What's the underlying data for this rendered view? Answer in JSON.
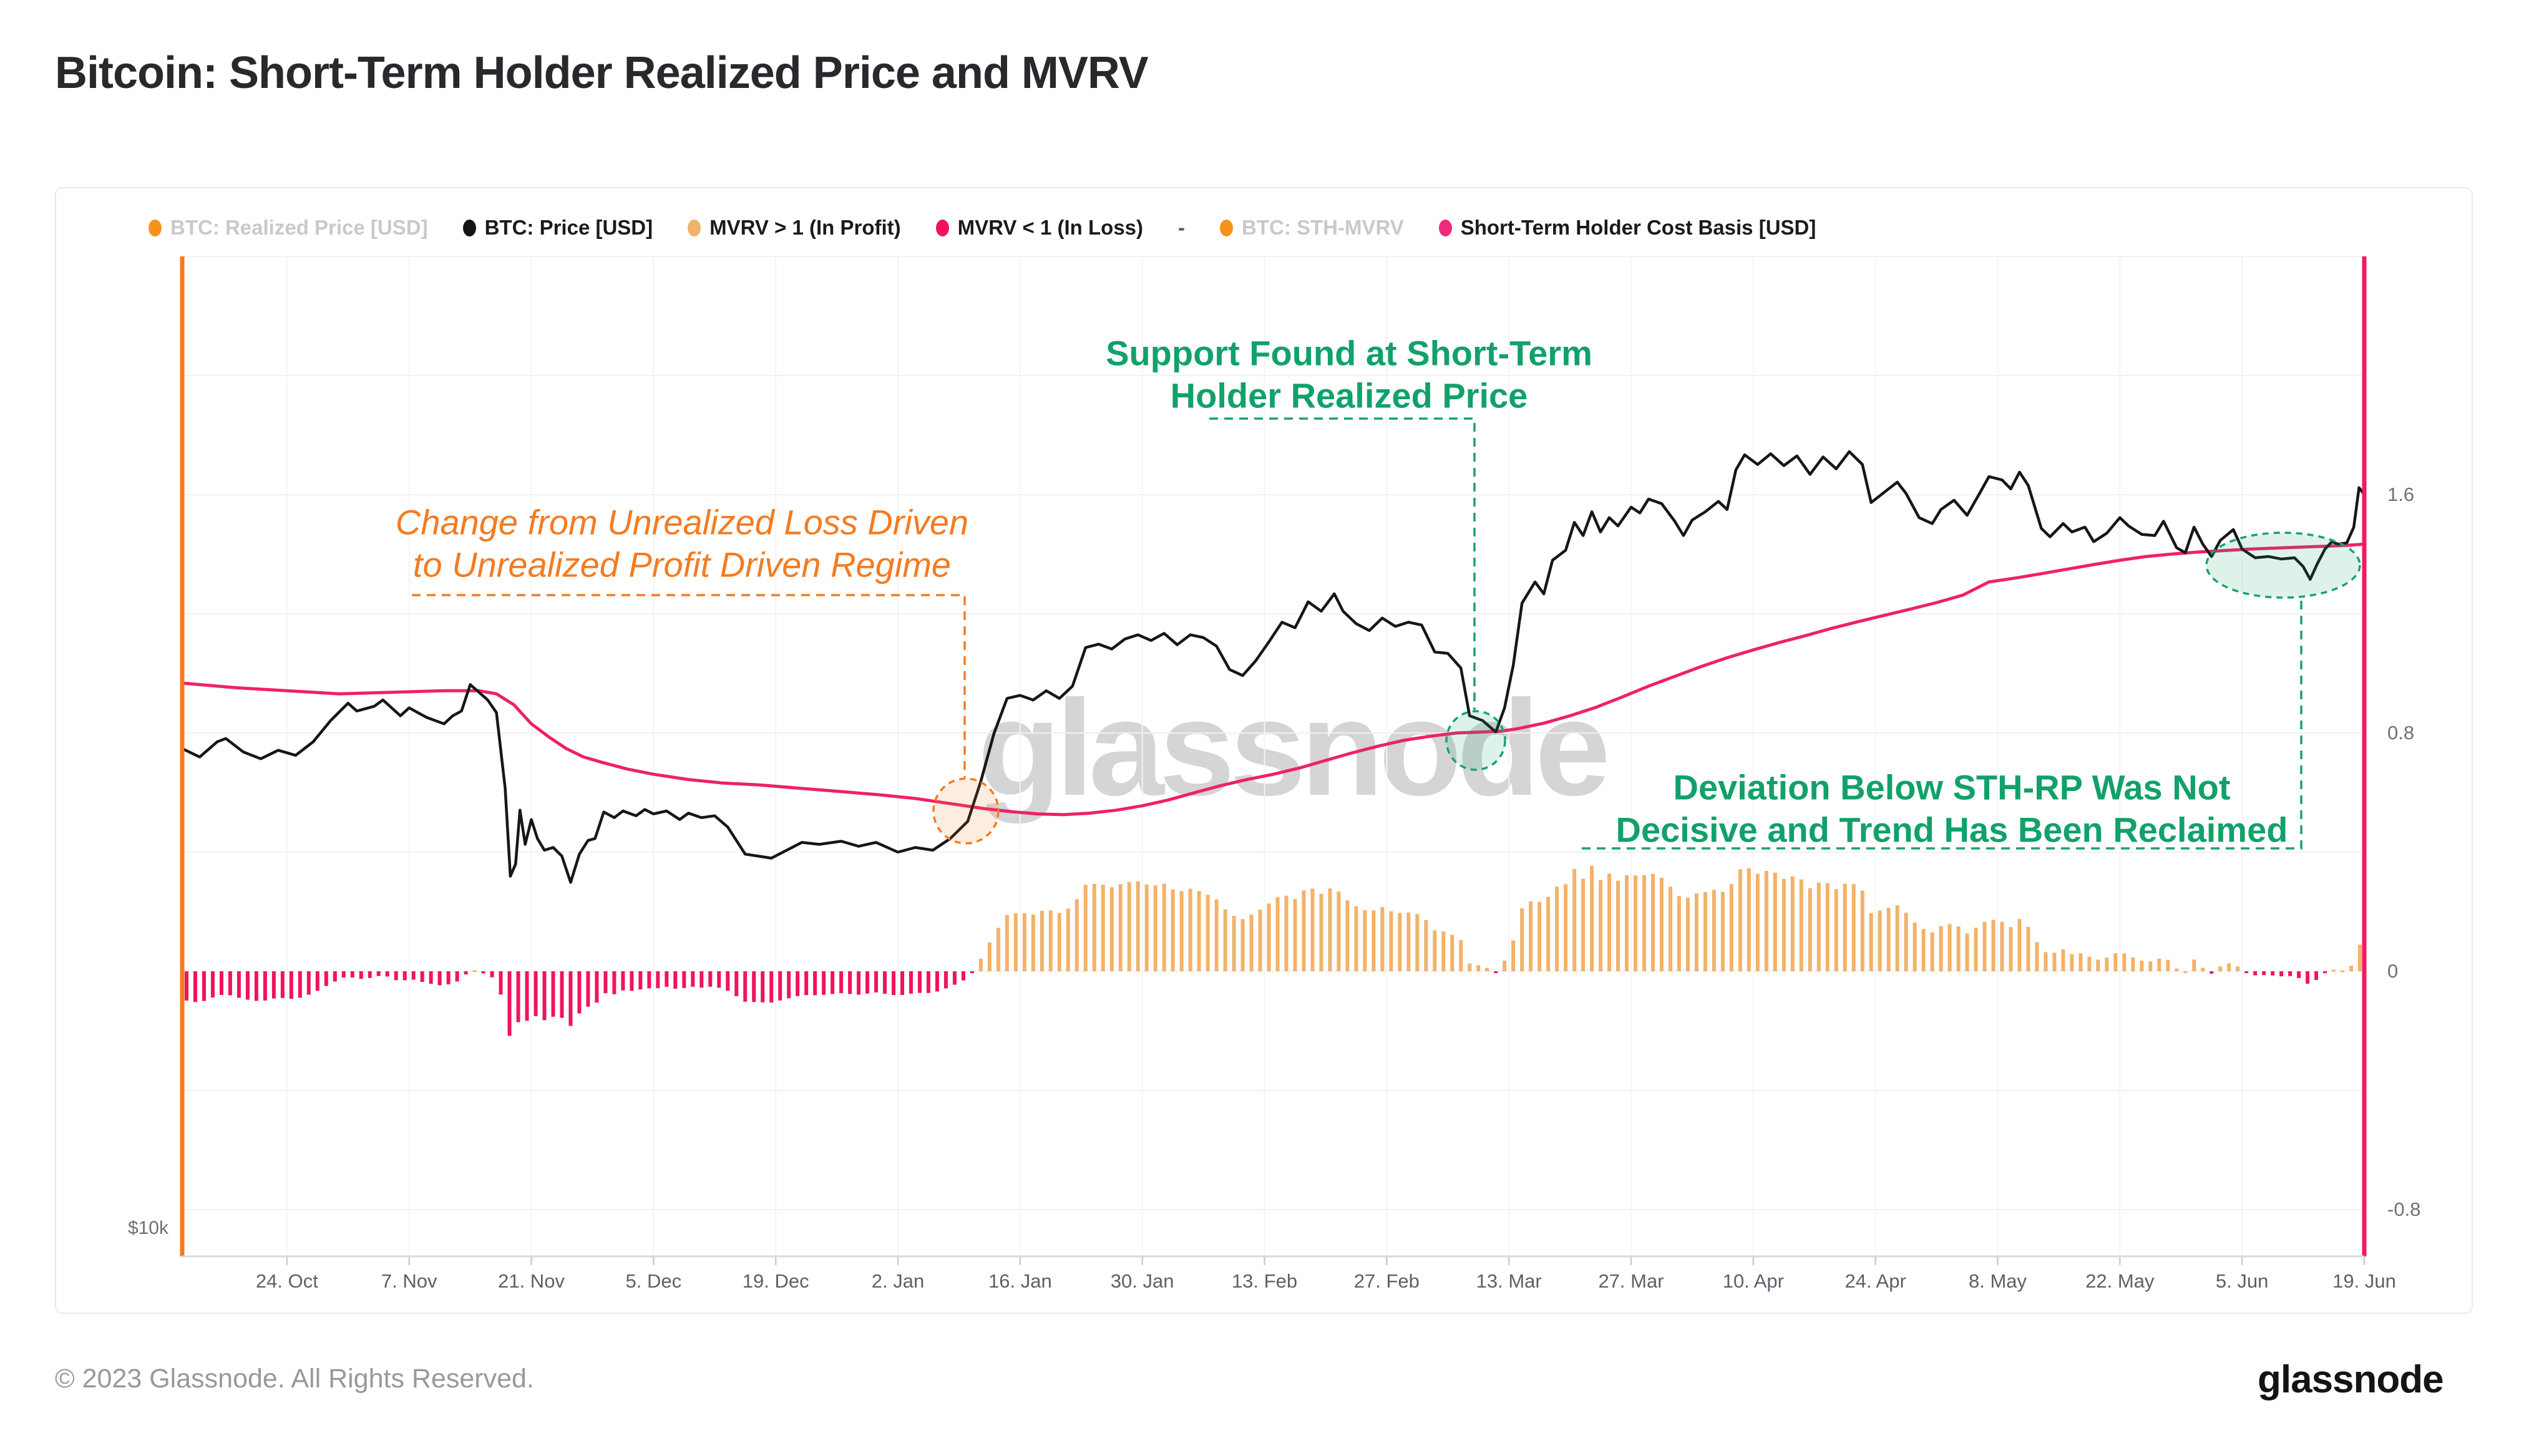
{
  "page": {
    "title": "Bitcoin: Short-Term Holder Realized Price and MVRV"
  },
  "legend": {
    "items": [
      {
        "label": "BTC: Realized Price [USD]",
        "color": "#F7931A",
        "muted": true,
        "separator": false
      },
      {
        "label": "BTC: Price [USD]",
        "color": "#141414",
        "muted": false,
        "separator": false
      },
      {
        "label": "MVRV > 1 (In Profit)",
        "color": "#F2B269",
        "muted": false,
        "separator": false
      },
      {
        "label": "MVRV < 1 (In Loss)",
        "color": "#F0135E",
        "muted": false,
        "separator": false
      },
      {
        "label": "-",
        "color": "",
        "muted": false,
        "separator": true
      },
      {
        "label": "BTC: STH-MVRV",
        "color": "#F7931A",
        "muted": true,
        "separator": false
      },
      {
        "label": "Short-Term Holder Cost Basis [USD]",
        "color": "#EE2A7B",
        "muted": false,
        "separator": false
      }
    ]
  },
  "annotations": {
    "regime_change": {
      "line1": "Change from Unrealized Loss Driven",
      "line2": "to Unrealized Profit Driven Regime",
      "color": "#f47b20"
    },
    "support_found": {
      "line1": "Support Found at Short-Term",
      "line2": "Holder Realized Price",
      "color": "#11a169"
    },
    "deviation": {
      "line1": "Deviation Below STH-RP Was Not",
      "line2": "Decisive and Trend Has Been Reclaimed",
      "color": "#11a169"
    }
  },
  "watermark": {
    "text": "glassnode"
  },
  "footer": {
    "copyright": "© 2023 Glassnode. All Rights Reserved.",
    "brand": "glassnode"
  },
  "chart_data": {
    "type": "line+bar",
    "title": "Bitcoin: Short-Term Holder Realized Price and MVRV",
    "x_axis": {
      "start_date": "2022-10-12",
      "end_date": "2023-06-19",
      "tick_labels": [
        "24. Oct",
        "7. Nov",
        "21. Nov",
        "5. Dec",
        "19. Dec",
        "2. Jan",
        "16. Jan",
        "30. Jan",
        "13. Feb",
        "27. Feb",
        "13. Mar",
        "27. Mar",
        "10. Apr",
        "24. Apr",
        "8. May",
        "22. May",
        "5. Jun",
        "19. Jun"
      ],
      "tick_days": [
        12,
        26,
        40,
        54,
        68,
        82,
        96,
        110,
        124,
        138,
        152,
        166,
        180,
        194,
        208,
        222,
        236,
        250
      ]
    },
    "y_axis_left": {
      "scale": "log",
      "unit": "USD",
      "visible_label": "$10k"
    },
    "y_axis_right": {
      "range": [
        -0.8,
        2.4
      ],
      "ticks": [
        {
          "v": 1.6,
          "label": "1.6"
        },
        {
          "v": 0.8,
          "label": "0.8"
        },
        {
          "v": 0,
          "label": "0"
        },
        {
          "v": -0.8,
          "label": "-0.8"
        }
      ]
    },
    "grid": true,
    "legend_position": "top",
    "series": {
      "btc_price_usd_k": {
        "name": "BTC: Price [USD]",
        "unit": "thousand USD",
        "color": "#141414",
        "points": [
          [
            0,
            19.35
          ],
          [
            2,
            19.1
          ],
          [
            4,
            19.55
          ],
          [
            5,
            19.65
          ],
          [
            7,
            19.25
          ],
          [
            9,
            19.05
          ],
          [
            11,
            19.3
          ],
          [
            13,
            19.15
          ],
          [
            15,
            19.55
          ],
          [
            17,
            20.2
          ],
          [
            19,
            20.75
          ],
          [
            20,
            20.5
          ],
          [
            22,
            20.65
          ],
          [
            23,
            20.85
          ],
          [
            25,
            20.35
          ],
          [
            26,
            20.6
          ],
          [
            28,
            20.3
          ],
          [
            30,
            20.1
          ],
          [
            31,
            20.35
          ],
          [
            32,
            20.5
          ],
          [
            33,
            21.35
          ],
          [
            34,
            21.1
          ],
          [
            35,
            20.85
          ],
          [
            36,
            20.45
          ],
          [
            37,
            18.2
          ],
          [
            37.6,
            15.9
          ],
          [
            38.2,
            16.2
          ],
          [
            38.7,
            17.6
          ],
          [
            39.3,
            16.7
          ],
          [
            40,
            17.35
          ],
          [
            40.7,
            16.85
          ],
          [
            41.5,
            16.55
          ],
          [
            42.5,
            16.62
          ],
          [
            43.5,
            16.4
          ],
          [
            44.5,
            15.75
          ],
          [
            45.5,
            16.45
          ],
          [
            46.5,
            16.8
          ],
          [
            47.3,
            16.85
          ],
          [
            48.3,
            17.55
          ],
          [
            49.5,
            17.4
          ],
          [
            50.5,
            17.58
          ],
          [
            52,
            17.45
          ],
          [
            53,
            17.62
          ],
          [
            54,
            17.5
          ],
          [
            55.5,
            17.58
          ],
          [
            57,
            17.35
          ],
          [
            58,
            17.52
          ],
          [
            59.5,
            17.4
          ],
          [
            61,
            17.45
          ],
          [
            62.5,
            17.15
          ],
          [
            63.5,
            16.8
          ],
          [
            64.5,
            16.45
          ],
          [
            66,
            16.4
          ],
          [
            67.5,
            16.35
          ],
          [
            69,
            16.52
          ],
          [
            71,
            16.75
          ],
          [
            73,
            16.7
          ],
          [
            75.5,
            16.78
          ],
          [
            77.5,
            16.65
          ],
          [
            79.5,
            16.75
          ],
          [
            82,
            16.5
          ],
          [
            84,
            16.62
          ],
          [
            86,
            16.55
          ],
          [
            88,
            16.85
          ],
          [
            90,
            17.3
          ],
          [
            91.5,
            18.4
          ],
          [
            93,
            19.8
          ],
          [
            94.5,
            20.9
          ],
          [
            96,
            21.0
          ],
          [
            97.5,
            20.85
          ],
          [
            99,
            21.15
          ],
          [
            100.5,
            20.9
          ],
          [
            102,
            21.3
          ],
          [
            103.5,
            22.6
          ],
          [
            105,
            22.72
          ],
          [
            106.5,
            22.55
          ],
          [
            108,
            22.9
          ],
          [
            109.5,
            23.05
          ],
          [
            111,
            22.85
          ],
          [
            112.5,
            23.1
          ],
          [
            114,
            22.7
          ],
          [
            115.5,
            23.05
          ],
          [
            117,
            22.95
          ],
          [
            118.5,
            22.65
          ],
          [
            120,
            21.85
          ],
          [
            121.5,
            21.65
          ],
          [
            123,
            22.15
          ],
          [
            124.5,
            22.8
          ],
          [
            126,
            23.5
          ],
          [
            127.5,
            23.3
          ],
          [
            129,
            24.25
          ],
          [
            130.5,
            23.9
          ],
          [
            132,
            24.55
          ],
          [
            133,
            23.9
          ],
          [
            134.5,
            23.45
          ],
          [
            136,
            23.2
          ],
          [
            137.5,
            23.65
          ],
          [
            139,
            23.35
          ],
          [
            140.5,
            23.5
          ],
          [
            142,
            23.4
          ],
          [
            143.5,
            22.45
          ],
          [
            145,
            22.4
          ],
          [
            146.5,
            21.9
          ],
          [
            147.5,
            20.35
          ],
          [
            149,
            20.2
          ],
          [
            150.5,
            19.85
          ],
          [
            151.5,
            20.6
          ],
          [
            152.5,
            22.0
          ],
          [
            153.5,
            24.2
          ],
          [
            155,
            25.0
          ],
          [
            156,
            24.55
          ],
          [
            157,
            25.85
          ],
          [
            158.5,
            26.25
          ],
          [
            159.5,
            27.4
          ],
          [
            160.5,
            26.85
          ],
          [
            161.5,
            27.85
          ],
          [
            162.5,
            27.0
          ],
          [
            163.5,
            27.6
          ],
          [
            164.5,
            27.25
          ],
          [
            166,
            28.05
          ],
          [
            167,
            27.8
          ],
          [
            168,
            28.4
          ],
          [
            169.5,
            28.2
          ],
          [
            171,
            27.45
          ],
          [
            172,
            26.85
          ],
          [
            173,
            27.5
          ],
          [
            174.5,
            27.85
          ],
          [
            176,
            28.3
          ],
          [
            177,
            27.95
          ],
          [
            178,
            29.7
          ],
          [
            179,
            30.4
          ],
          [
            180.5,
            29.95
          ],
          [
            182,
            30.45
          ],
          [
            183.5,
            29.9
          ],
          [
            185,
            30.35
          ],
          [
            186.5,
            29.5
          ],
          [
            188,
            30.3
          ],
          [
            189.5,
            29.75
          ],
          [
            191,
            30.55
          ],
          [
            192.5,
            29.95
          ],
          [
            193.5,
            28.25
          ],
          [
            195,
            28.7
          ],
          [
            196.5,
            29.15
          ],
          [
            197.5,
            28.65
          ],
          [
            199,
            27.6
          ],
          [
            200.5,
            27.35
          ],
          [
            201.5,
            27.95
          ],
          [
            203,
            28.35
          ],
          [
            204.5,
            27.7
          ],
          [
            206,
            28.7
          ],
          [
            207,
            29.4
          ],
          [
            208.5,
            29.25
          ],
          [
            209.5,
            28.85
          ],
          [
            210.5,
            29.6
          ],
          [
            211.5,
            29.0
          ],
          [
            213,
            27.15
          ],
          [
            214,
            26.8
          ],
          [
            215.5,
            27.35
          ],
          [
            216.5,
            27.0
          ],
          [
            218,
            27.2
          ],
          [
            219,
            26.6
          ],
          [
            220.5,
            26.95
          ],
          [
            222,
            27.6
          ],
          [
            223,
            27.25
          ],
          [
            224.5,
            26.9
          ],
          [
            226,
            26.85
          ],
          [
            227,
            27.45
          ],
          [
            228.5,
            26.35
          ],
          [
            229.5,
            26.15
          ],
          [
            230.5,
            27.2
          ],
          [
            231.5,
            26.5
          ],
          [
            232.5,
            26.0
          ],
          [
            233.5,
            26.65
          ],
          [
            235,
            27.1
          ],
          [
            236,
            26.3
          ],
          [
            237.5,
            25.95
          ],
          [
            239,
            26.0
          ],
          [
            240.5,
            25.9
          ],
          [
            242,
            25.95
          ],
          [
            243,
            25.6
          ],
          [
            243.8,
            25.1
          ],
          [
            244.6,
            25.7
          ],
          [
            245.5,
            26.3
          ],
          [
            246.3,
            26.6
          ],
          [
            247,
            26.5
          ],
          [
            248,
            26.55
          ],
          [
            248.8,
            27.2
          ],
          [
            249.4,
            28.9
          ],
          [
            250,
            28.6
          ]
        ]
      },
      "sth_cost_basis_usd_k": {
        "name": "Short-Term Holder Cost Basis [USD]",
        "unit": "thousand USD",
        "color": "#EF2069",
        "points": [
          [
            0,
            21.4
          ],
          [
            6,
            21.25
          ],
          [
            12,
            21.15
          ],
          [
            18,
            21.05
          ],
          [
            24,
            21.1
          ],
          [
            30,
            21.15
          ],
          [
            34,
            21.15
          ],
          [
            36,
            21.05
          ],
          [
            38,
            20.7
          ],
          [
            40,
            20.1
          ],
          [
            42,
            19.7
          ],
          [
            44,
            19.35
          ],
          [
            46,
            19.1
          ],
          [
            48,
            18.95
          ],
          [
            51,
            18.75
          ],
          [
            54,
            18.6
          ],
          [
            58,
            18.45
          ],
          [
            62,
            18.35
          ],
          [
            66,
            18.3
          ],
          [
            70,
            18.22
          ],
          [
            75,
            18.12
          ],
          [
            80,
            18.02
          ],
          [
            84,
            17.92
          ],
          [
            88,
            17.78
          ],
          [
            92,
            17.64
          ],
          [
            95,
            17.56
          ],
          [
            98,
            17.5
          ],
          [
            101,
            17.48
          ],
          [
            104,
            17.52
          ],
          [
            107,
            17.6
          ],
          [
            110,
            17.72
          ],
          [
            113,
            17.88
          ],
          [
            116,
            18.08
          ],
          [
            119,
            18.28
          ],
          [
            122,
            18.45
          ],
          [
            125,
            18.6
          ],
          [
            128,
            18.78
          ],
          [
            131,
            19.0
          ],
          [
            134,
            19.22
          ],
          [
            137,
            19.42
          ],
          [
            140,
            19.6
          ],
          [
            143,
            19.72
          ],
          [
            146,
            19.82
          ],
          [
            149,
            19.85
          ],
          [
            151,
            19.87
          ],
          [
            153,
            19.95
          ],
          [
            156,
            20.12
          ],
          [
            159,
            20.35
          ],
          [
            162,
            20.62
          ],
          [
            165,
            20.95
          ],
          [
            168,
            21.3
          ],
          [
            171,
            21.62
          ],
          [
            174,
            21.95
          ],
          [
            177,
            22.25
          ],
          [
            180,
            22.52
          ],
          [
            183,
            22.78
          ],
          [
            186,
            23.02
          ],
          [
            189,
            23.28
          ],
          [
            192,
            23.52
          ],
          [
            195,
            23.75
          ],
          [
            198,
            23.98
          ],
          [
            201,
            24.22
          ],
          [
            204,
            24.5
          ],
          [
            207,
            25.0
          ],
          [
            210,
            25.15
          ],
          [
            213,
            25.32
          ],
          [
            216,
            25.5
          ],
          [
            219,
            25.68
          ],
          [
            222,
            25.85
          ],
          [
            225,
            26.0
          ],
          [
            228,
            26.1
          ],
          [
            231,
            26.18
          ],
          [
            234,
            26.24
          ],
          [
            237,
            26.3
          ],
          [
            240,
            26.34
          ],
          [
            243,
            26.38
          ],
          [
            246,
            26.42
          ],
          [
            248,
            26.45
          ],
          [
            250,
            26.5
          ]
        ]
      },
      "sth_mvrv_bars": {
        "name": "BTC: STH-MVRV (deviation from 1)",
        "derivation": "price / cost_basis - 1, plotted daily as bars on right axis",
        "profit_color": "#F2B269",
        "loss_color": "#F0135E",
        "approx_extremes": {
          "deepest_loss": -0.27,
          "deepest_loss_date": "2022-11-09",
          "max_profit": 0.35,
          "max_profit_date": "2023-04-10"
        }
      }
    }
  }
}
